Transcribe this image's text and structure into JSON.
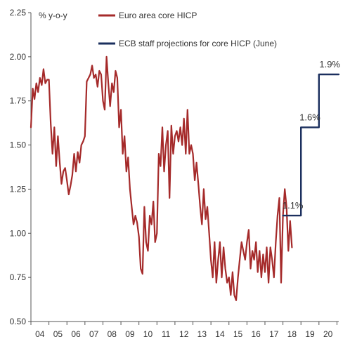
{
  "chart_data": {
    "type": "line",
    "title": "",
    "xlabel": "",
    "ylabel": "% y-o-y",
    "xlim": [
      2004.0,
      2021.1
    ],
    "ylim": [
      0.5,
      2.25
    ],
    "yticks": [
      "0.50",
      "0.75",
      "1.00",
      "1.25",
      "1.50",
      "1.75",
      "2.00",
      "2.25"
    ],
    "ytick_values": [
      0.5,
      0.75,
      1.0,
      1.25,
      1.5,
      1.75,
      2.0,
      2.25
    ],
    "xticks": [
      "04",
      "05",
      "06",
      "07",
      "08",
      "09",
      "10",
      "11",
      "12",
      "13",
      "14",
      "15",
      "16",
      "17",
      "18",
      "19",
      "20"
    ],
    "xtick_values": [
      2004,
      2005,
      2006,
      2007,
      2008,
      2009,
      2010,
      2011,
      2012,
      2013,
      2014,
      2015,
      2016,
      2017,
      2018,
      2019,
      2020
    ],
    "grid": false,
    "legend_placement": "top",
    "colors": {
      "hicp": "#a52a2a",
      "projection": "#1b2f5e"
    },
    "series": [
      {
        "name": "Euro area core HICP",
        "color": "#a52a2a",
        "x": [
          2004.0,
          2004.1,
          2004.2,
          2004.3,
          2004.4,
          2004.5,
          2004.6,
          2004.7,
          2004.8,
          2004.9,
          2005.0,
          2005.1,
          2005.2,
          2005.3,
          2005.4,
          2005.5,
          2005.6,
          2005.7,
          2005.8,
          2005.9,
          2006.0,
          2006.1,
          2006.2,
          2006.3,
          2006.4,
          2006.5,
          2006.6,
          2006.7,
          2006.8,
          2006.9,
          2007.0,
          2007.1,
          2007.2,
          2007.3,
          2007.4,
          2007.5,
          2007.6,
          2007.7,
          2007.8,
          2007.9,
          2008.0,
          2008.1,
          2008.2,
          2008.3,
          2008.4,
          2008.5,
          2008.6,
          2008.7,
          2008.8,
          2008.9,
          2009.0,
          2009.1,
          2009.2,
          2009.3,
          2009.4,
          2009.5,
          2009.6,
          2009.7,
          2009.8,
          2009.9,
          2010.0,
          2010.1,
          2010.2,
          2010.3,
          2010.4,
          2010.5,
          2010.6,
          2010.7,
          2010.8,
          2010.9,
          2011.0,
          2011.1,
          2011.2,
          2011.3,
          2011.4,
          2011.5,
          2011.6,
          2011.7,
          2011.8,
          2011.9,
          2012.0,
          2012.1,
          2012.2,
          2012.3,
          2012.4,
          2012.5,
          2012.6,
          2012.7,
          2012.8,
          2012.9,
          2013.0,
          2013.1,
          2013.2,
          2013.3,
          2013.4,
          2013.5,
          2013.6,
          2013.7,
          2013.8,
          2013.9,
          2014.0,
          2014.1,
          2014.2,
          2014.3,
          2014.4,
          2014.5,
          2014.6,
          2014.7,
          2014.8,
          2014.9,
          2015.0,
          2015.1,
          2015.2,
          2015.3,
          2015.4,
          2015.5,
          2015.6,
          2015.7,
          2015.8,
          2015.9,
          2016.0,
          2016.1,
          2016.2,
          2016.3,
          2016.4,
          2016.5,
          2016.6,
          2016.7,
          2016.8,
          2016.9,
          2017.0,
          2017.1,
          2017.2,
          2017.3,
          2017.4,
          2017.5,
          2017.6,
          2017.7,
          2017.8,
          2017.9,
          2018.0,
          2018.1,
          2018.2,
          2018.3,
          2018.4,
          2018.5
        ],
        "y": [
          1.6,
          1.82,
          1.76,
          1.85,
          1.8,
          1.88,
          1.84,
          1.93,
          1.85,
          1.87,
          1.87,
          1.62,
          1.45,
          1.6,
          1.38,
          1.55,
          1.4,
          1.28,
          1.35,
          1.37,
          1.3,
          1.22,
          1.27,
          1.33,
          1.45,
          1.35,
          1.46,
          1.4,
          1.5,
          1.52,
          1.55,
          1.86,
          1.88,
          1.9,
          1.95,
          1.88,
          1.9,
          1.83,
          1.92,
          1.9,
          1.75,
          1.7,
          2.0,
          1.85,
          1.72,
          1.85,
          1.8,
          1.92,
          1.88,
          1.6,
          1.7,
          1.45,
          1.55,
          1.35,
          1.43,
          1.25,
          1.15,
          1.05,
          1.1,
          1.06,
          0.98,
          0.8,
          0.77,
          1.15,
          0.95,
          0.9,
          1.1,
          1.05,
          1.18,
          0.95,
          1.0,
          1.45,
          1.38,
          1.6,
          1.35,
          1.5,
          1.58,
          1.2,
          1.61,
          1.45,
          1.55,
          1.58,
          1.52,
          1.6,
          1.5,
          1.65,
          1.45,
          1.7,
          1.45,
          1.5,
          1.45,
          1.3,
          1.4,
          1.28,
          1.15,
          1.05,
          1.25,
          1.08,
          1.15,
          1.0,
          0.85,
          0.75,
          0.95,
          0.72,
          0.85,
          0.95,
          0.75,
          0.92,
          0.8,
          0.72,
          0.75,
          0.65,
          0.78,
          0.65,
          0.62,
          0.75,
          0.85,
          0.95,
          0.9,
          0.85,
          0.95,
          1.02,
          0.8,
          0.9,
          0.85,
          0.95,
          0.78,
          0.9,
          0.75,
          0.88,
          0.78,
          0.92,
          0.72,
          0.92,
          0.85,
          0.75,
          0.95,
          1.1,
          1.2,
          0.72,
          1.1,
          1.25,
          1.15,
          0.9,
          1.07,
          0.92
        ]
      },
      {
        "name": "ECB staff projections for core HICP (June)",
        "color": "#1b2f5e",
        "x": [
          2018.0,
          2019.0,
          2019.0,
          2020.0,
          2020.0,
          2021.1
        ],
        "y": [
          1.1,
          1.1,
          1.6,
          1.6,
          1.9,
          1.9
        ]
      }
    ],
    "annotations": [
      {
        "text": "1.1%",
        "x": 2018.55,
        "y": 1.1
      },
      {
        "text": "1.6%",
        "x": 2019.5,
        "y": 1.6
      },
      {
        "text": "1.9%",
        "x": 2020.6,
        "y": 1.9
      }
    ]
  }
}
